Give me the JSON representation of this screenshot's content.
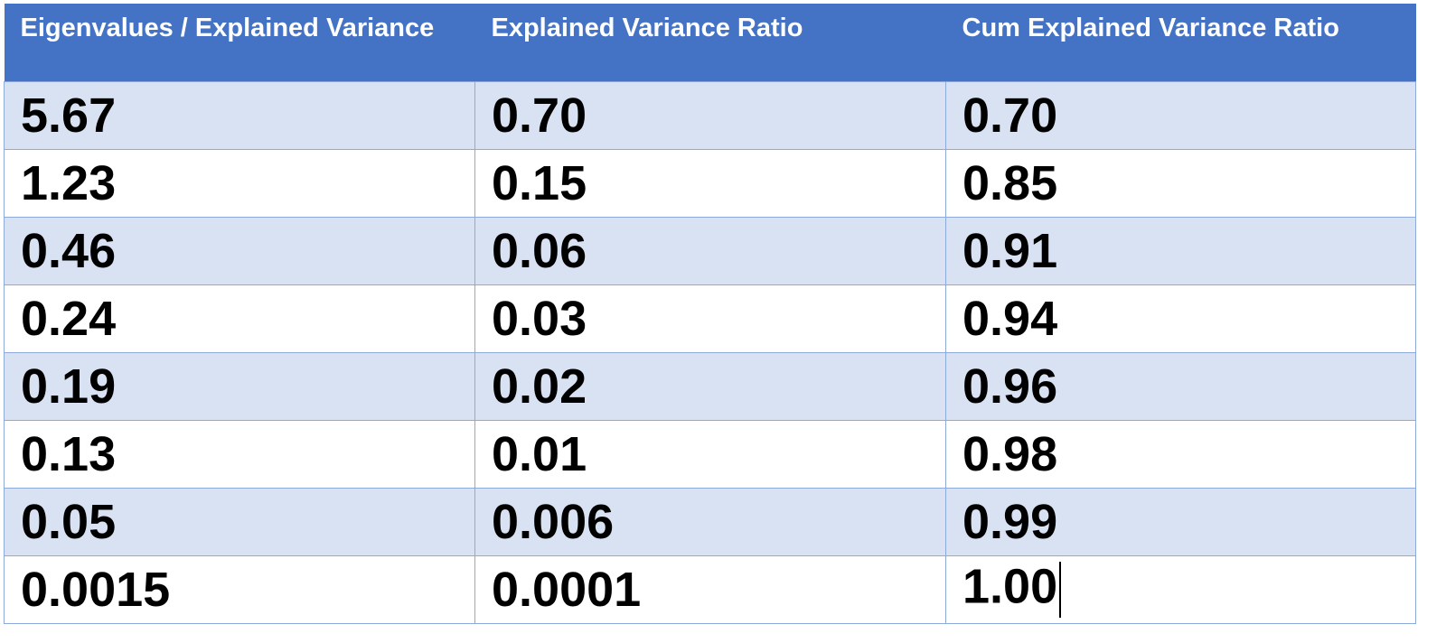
{
  "table": {
    "headers": [
      "Eigenvalues / Explained Variance",
      "Explained Variance Ratio",
      "Cum Explained Variance Ratio"
    ],
    "rows": [
      [
        "5.67",
        "0.70",
        "0.70"
      ],
      [
        "1.23",
        "0.15",
        "0.85"
      ],
      [
        "0.46",
        "0.06",
        "0.91"
      ],
      [
        "0.24",
        "0.03",
        "0.94"
      ],
      [
        "0.19",
        "0.02",
        "0.96"
      ],
      [
        "0.13",
        "0.01",
        "0.98"
      ],
      [
        "0.05",
        "0.006",
        "0.99"
      ],
      [
        "0.0015",
        "0.0001",
        "1.00"
      ]
    ]
  },
  "colors": {
    "header_bg": "#4472c4",
    "band_bg": "#d9e2f3",
    "border": "#8eaadb"
  }
}
